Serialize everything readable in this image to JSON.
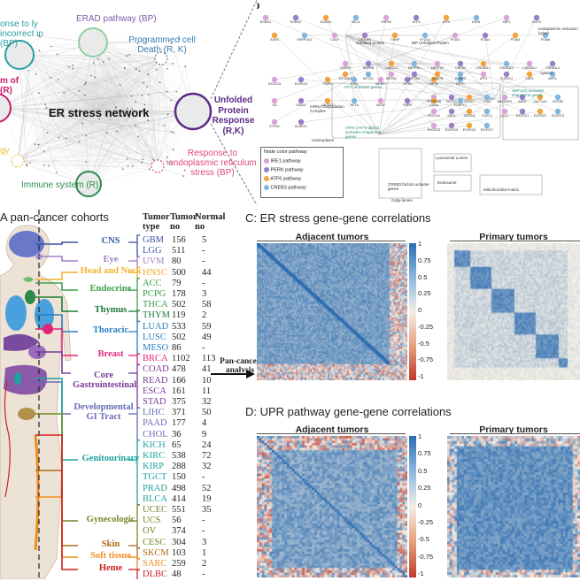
{
  "network": {
    "center_label": "ER stress network",
    "nodes": [
      {
        "id": "erad",
        "label": "ERAD pathway (BP)",
        "color": "#7b5ea7"
      },
      {
        "id": "pcd",
        "label": "Programmed cell Death (R, K)",
        "color": "#3d7fb0"
      },
      {
        "id": "upr",
        "label": "Unfolded Protein Response (R,K)",
        "color": "#5b2a86"
      },
      {
        "id": "resp",
        "label": "Response to endoplasmic reticulum stress (BP)",
        "color": "#e0487c"
      },
      {
        "id": "immune",
        "label": "Immune system (R)",
        "color": "#2b8c4e"
      },
      {
        "id": "incorrect",
        "label": "onse to ly incorrect in (BP)",
        "color": "#2a9ea0"
      },
      {
        "id": "metab",
        "label": "m of (R)",
        "color": "#c81e6e"
      },
      {
        "id": "autoph",
        "label": "gy",
        "color": "#e8c02a"
      }
    ]
  },
  "panelB": {
    "letter": "b",
    "legend_title": "Node color  pathway",
    "legend": [
      {
        "label": "IRE1 pathway",
        "color": "#d9a3d9"
      },
      {
        "label": "PERK pathway",
        "color": "#9a7fc8"
      },
      {
        "label": "ATF6 pathway",
        "color": "#f2a33a"
      },
      {
        "label": "CREB3 pathway",
        "color": "#7fb7e0"
      }
    ],
    "annotations": [
      "unfolded protein",
      "BiP Unfolded Protein",
      "endoplasmic reticulum lumen",
      "ATF4 activates genes",
      "XBP1(S) activates chaperone genes",
      "ATF6 (ATF6-alpha) activates chaperone genes",
      "mRNA Degradation Complex",
      "nucleoplasm",
      "CREB3 factors activate genes",
      "Golgi lumen",
      "Lysosomal Lumen",
      "Endosome",
      "Mitochondrial matrix",
      "cytosol"
    ],
    "genes": [
      "EDEM1",
      "EDEM2",
      "EDEM3",
      "SEL1L",
      "HSPA5",
      "ATF4",
      "ATF6",
      "ERN1",
      "XBP1",
      "DDIT3",
      "ASNS",
      "HERPUD1",
      "CALR",
      "DNAJB9",
      "TXNIP",
      "HYOU1",
      "PDIA3",
      "PDIA4",
      "PDIA5",
      "PDIA6",
      "SERP1",
      "SRPRB",
      "DNAJC3",
      "MBTPS1",
      "MBTPS2",
      "CREB3",
      "CREB3L1",
      "CREB3L2",
      "CREB3L3",
      "CREB3L4",
      "EIF2AK3",
      "EIF2S1",
      "EIF2S2",
      "EIF2S3",
      "CEBPB",
      "CEBPG",
      "ATF3",
      "KLHDC3",
      "SSR1",
      "WIPI1",
      "PPP2R5B",
      "DCTN1",
      "GFPT1",
      "TLN1",
      "ARFGAP1",
      "ADD1",
      "SULT1A3",
      "GOSR2",
      "SEC31A",
      "SHC1",
      "TATDN2",
      "CXXC1",
      "CUL7",
      "EXOSC1",
      "EXOSC2",
      "EXOSC3",
      "EXOSC4",
      "EXOSC5",
      "EXOSC6",
      "EXOSC7",
      "EXOSC8",
      "EXOSC9",
      "PARN",
      "DIS3",
      "IGFBP1",
      "NFYA",
      "NFYB",
      "NFYC",
      "IL8",
      "DDX11",
      "ZBTB17",
      "YIF1A",
      "HDGF",
      "PREB",
      "LMNA",
      "FKBP14",
      "SYVN1",
      "ACADVL"
    ]
  },
  "cohort": {
    "title": "A pan-cancer cohorts",
    "header_type": "Tumor type",
    "header_tumor": "Tumor no",
    "header_normal": "Normal no",
    "systems": [
      {
        "label": "CNS",
        "color": "#3a52a6"
      },
      {
        "label": "Eye",
        "color": "#9b7fc7"
      },
      {
        "label": "Head and Neck",
        "color": "#f2b12f"
      },
      {
        "label": "Endocrine",
        "color": "#3aa14a"
      },
      {
        "label": "Thymus",
        "color": "#1f7a3a"
      },
      {
        "label": "Thoracic",
        "color": "#2a7fc0"
      },
      {
        "label": "Breast",
        "color": "#e0267a"
      },
      {
        "label": "Core Gastrointestinal",
        "color": "#7a3a96"
      },
      {
        "label": "Developmental GI Tract",
        "color": "#6a6ab8"
      },
      {
        "label": "Genitourinary",
        "color": "#1fa3a0"
      },
      {
        "label": "Gynecologic",
        "color": "#6e8a2a"
      },
      {
        "label": "Skin",
        "color": "#b06a1a"
      },
      {
        "label": "Soft tissue",
        "color": "#f08c1e"
      },
      {
        "label": "Heme",
        "color": "#d02020"
      }
    ],
    "rows": [
      {
        "type": "GBM",
        "tumor": "156",
        "normal": "5",
        "color": "#3a52a6"
      },
      {
        "type": "LGG",
        "tumor": "511",
        "normal": "-",
        "color": "#3a52a6"
      },
      {
        "type": "UVM",
        "tumor": "80",
        "normal": "-",
        "color": "#9b7fc7"
      },
      {
        "type": "HNSC",
        "tumor": "500",
        "normal": "44",
        "color": "#f2b12f"
      },
      {
        "type": "ACC",
        "tumor": "79",
        "normal": "-",
        "color": "#3aa14a"
      },
      {
        "type": "PCPG",
        "tumor": "178",
        "normal": "3",
        "color": "#3aa14a"
      },
      {
        "type": "THCA",
        "tumor": "502",
        "normal": "58",
        "color": "#3aa14a"
      },
      {
        "type": "THYM",
        "tumor": "119",
        "normal": "2",
        "color": "#1f7a3a"
      },
      {
        "type": "LUAD",
        "tumor": "533",
        "normal": "59",
        "color": "#2a7fc0"
      },
      {
        "type": "LUSC",
        "tumor": "502",
        "normal": "49",
        "color": "#2a7fc0"
      },
      {
        "type": "MESO",
        "tumor": "86",
        "normal": "-",
        "color": "#2a7fc0"
      },
      {
        "type": "BRCA",
        "tumor": "1102",
        "normal": "113",
        "color": "#e0267a"
      },
      {
        "type": "COAD",
        "tumor": "478",
        "normal": "41",
        "color": "#7a3a96"
      },
      {
        "type": "READ",
        "tumor": "166",
        "normal": "10",
        "color": "#7a3a96"
      },
      {
        "type": "ESCA",
        "tumor": "161",
        "normal": "11",
        "color": "#7a3a96"
      },
      {
        "type": "STAD",
        "tumor": "375",
        "normal": "32",
        "color": "#7a3a96"
      },
      {
        "type": "LIHC",
        "tumor": "371",
        "normal": "50",
        "color": "#6a6ab8"
      },
      {
        "type": "PAAD",
        "tumor": "177",
        "normal": "4",
        "color": "#6a6ab8"
      },
      {
        "type": "CHOL",
        "tumor": "36",
        "normal": "9",
        "color": "#6a6ab8"
      },
      {
        "type": "KICH",
        "tumor": "65",
        "normal": "24",
        "color": "#1fa3a0"
      },
      {
        "type": "KIRC",
        "tumor": "538",
        "normal": "72",
        "color": "#1fa3a0"
      },
      {
        "type": "KIRP",
        "tumor": "288",
        "normal": "32",
        "color": "#1fa3a0"
      },
      {
        "type": "TGCT",
        "tumor": "150",
        "normal": "-",
        "color": "#1fa3a0"
      },
      {
        "type": "PRAD",
        "tumor": "498",
        "normal": "52",
        "color": "#1fa3a0"
      },
      {
        "type": "BLCA",
        "tumor": "414",
        "normal": "19",
        "color": "#1fa3a0"
      },
      {
        "type": "UCEC",
        "tumor": "551",
        "normal": "35",
        "color": "#6e8a2a"
      },
      {
        "type": "UCS",
        "tumor": "56",
        "normal": "-",
        "color": "#6e8a2a"
      },
      {
        "type": "OV",
        "tumor": "374",
        "normal": "-",
        "color": "#6e8a2a"
      },
      {
        "type": "CESC",
        "tumor": "304",
        "normal": "3",
        "color": "#6e8a2a"
      },
      {
        "type": "SKCM",
        "tumor": "103",
        "normal": "1",
        "color": "#b06a1a"
      },
      {
        "type": "SARC",
        "tumor": "259",
        "normal": "2",
        "color": "#f08c1e"
      },
      {
        "type": "DLBC",
        "tumor": "48",
        "normal": "-",
        "color": "#d02020"
      }
    ],
    "arrow_label": "Pan-cancer analysis"
  },
  "panelC": {
    "title": "C: ER stress gene-gene correlations",
    "left_title": "Adjacent tumors",
    "right_title": "Primary tumors",
    "colorbar_ticks": [
      "1",
      "0.75",
      "0.5",
      "0.25",
      "0",
      "-0.25",
      "-0.5",
      "-0.75",
      "-1"
    ]
  },
  "panelD": {
    "title": "D: UPR pathway gene-gene correlations",
    "left_title": "Adjacent tumors",
    "right_title": "Primary tumors",
    "colorbar_ticks": [
      "1",
      "0.75",
      "0.5",
      "0.25",
      "0",
      "-0.25",
      "-0.5",
      "-0.75",
      "-1"
    ]
  },
  "colors": {
    "heat_pos": "#2b6cb0",
    "heat_neg": "#c0392b",
    "heat_zero": "#f4efe6"
  }
}
